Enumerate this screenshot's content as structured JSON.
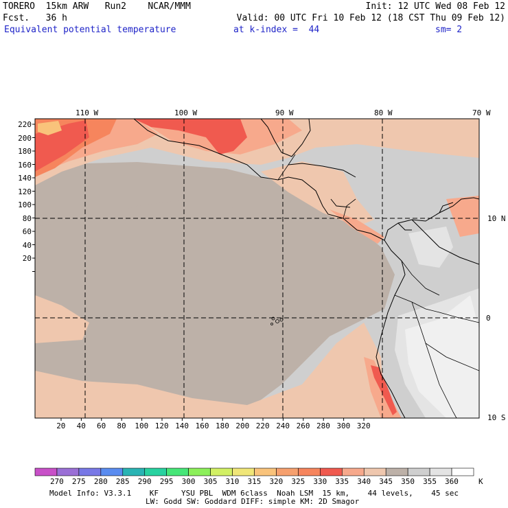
{
  "header": {
    "left_line1": "TORERO  15km ARW   Run2    NCAR/MMM",
    "left_line2": "Fcst.   36 h",
    "right_line1": "Init: 12 UTC Wed 08 Feb 12",
    "right_line2": "Valid: 00 UTC Fri 10 Feb 12 (18 CST Thu 09 Feb 12)",
    "field_name": "Equivalent potential temperature",
    "level": "at k-index =  44",
    "smoothing": "sm= 2"
  },
  "map": {
    "lon_labels": [
      "110 W",
      "100 W",
      "90 W",
      "80 W",
      "70 W"
    ],
    "lat_labels": [
      "10 N",
      "0",
      "10 S"
    ],
    "y_ticks": [
      "220",
      "200",
      "180",
      "160",
      "140",
      "120",
      "100",
      "80",
      "60",
      "40",
      "20"
    ],
    "x_ticks": [
      "20",
      "40",
      "60",
      "80",
      "100",
      "120",
      "140",
      "160",
      "180",
      "200",
      "220",
      "240",
      "260",
      "280",
      "300",
      "320"
    ],
    "colors": {
      "ocean_base": "#cfcfcf",
      "warm_band": "#bdb1a8",
      "tan": "#efc7ae",
      "salmon": "#f7a98c",
      "orange": "#f6855d",
      "red": "#f05a4f",
      "peach": "#f9c37b",
      "light_gray": "#e4e4e4",
      "white_gray": "#f0f0f0"
    }
  },
  "colorbar": {
    "labels": [
      "270",
      "275",
      "280",
      "285",
      "290",
      "295",
      "300",
      "305",
      "310",
      "315",
      "320",
      "325",
      "330",
      "335",
      "340",
      "345",
      "350",
      "355",
      "360"
    ],
    "unit": "K",
    "colors": [
      "#c850c8",
      "#9a6fd6",
      "#7878e6",
      "#5a8cf0",
      "#2ab4b4",
      "#28d2a0",
      "#46e678",
      "#8cf05a",
      "#d2f064",
      "#f0e678",
      "#f9c37b",
      "#f6a06e",
      "#f6855d",
      "#f05a4f",
      "#f7a98c",
      "#efc7ae",
      "#bdb1a8",
      "#cfcfcf",
      "#e4e4e4",
      "#ffffff"
    ]
  },
  "footer": {
    "line1": "Model Info: V3.3.1    KF     YSU PBL  WDM 6class  Noah LSM  15 km,    44 levels,    45 sec",
    "line2": "LW: Godd SW: Goddard DIFF: simple KM: 2D Smagor"
  }
}
